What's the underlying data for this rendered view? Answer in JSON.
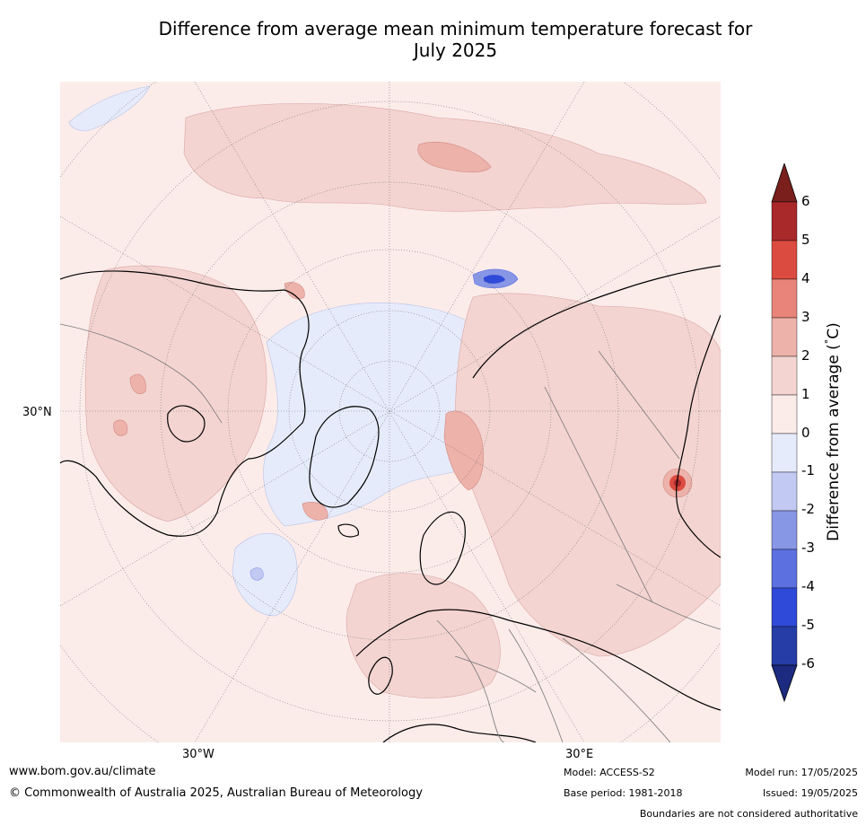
{
  "title": "Difference from average mean minimum temperature forecast for\nJuly 2025",
  "map": {
    "projection": "north-polar-stereographic",
    "lat_labels": [
      "30°N"
    ],
    "lon_labels": [
      "30°W",
      "30°E"
    ]
  },
  "colorbar": {
    "label": "Difference from average (°C)",
    "label_html_pre": "Difference from average (",
    "label_deg": "°",
    "label_unit": "C)",
    "ticks": [
      "6",
      "5",
      "4",
      "3",
      "2",
      "1",
      "0",
      "-1",
      "-2",
      "-3",
      "-4",
      "-5",
      "-6"
    ],
    "colors": [
      "#7a1f1c",
      "#a9282a",
      "#db4b40",
      "#e8847a",
      "#edb2aa",
      "#f3d4d1",
      "#fbecea",
      "#e6ebfb",
      "#c2c9f2",
      "#8896e6",
      "#5c70e0",
      "#2f4ad8",
      "#263ca6",
      "#1c2a80"
    ]
  },
  "footer": {
    "url": "www.bom.gov.au/climate",
    "copyright": "© Commonwealth of Australia 2025, Australian Bureau of Meteorology",
    "model": "Model: ACCESS-S2",
    "base_period": "Base period: 1981-2018",
    "model_run": "Model run: 17/05/2025",
    "issued": "Issued: 19/05/2025",
    "boundaries_note": "Boundaries are not considered authoritative"
  }
}
